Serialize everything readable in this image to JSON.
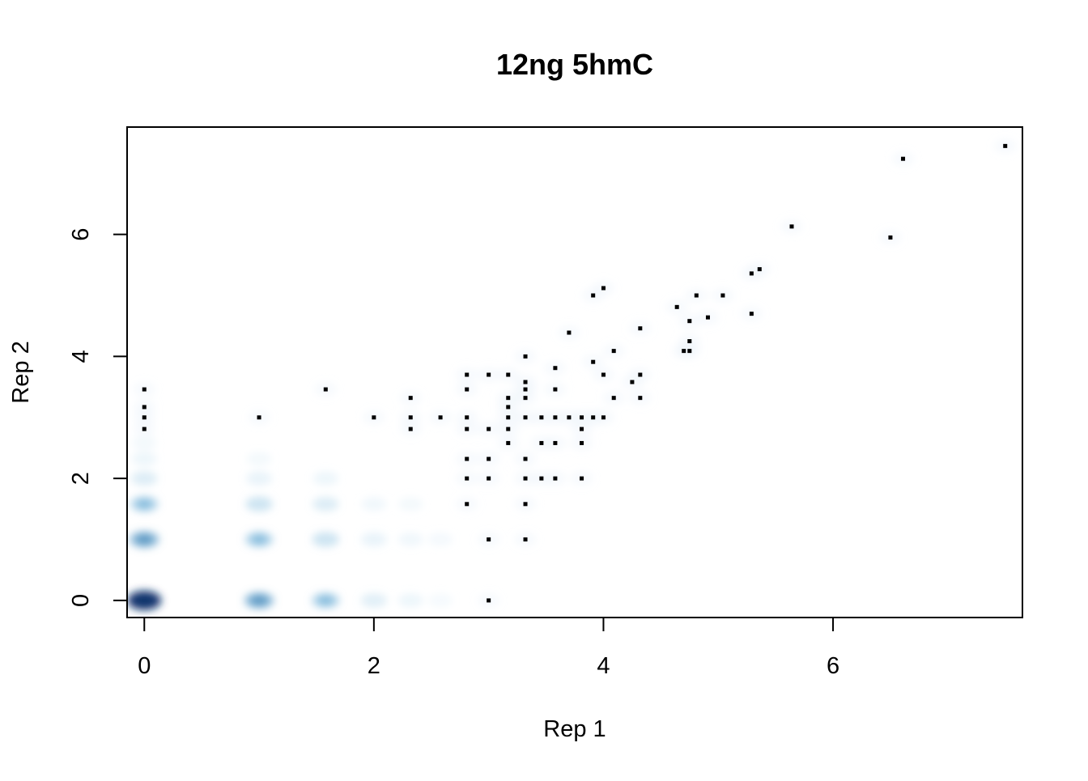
{
  "chart_data": {
    "type": "scatter",
    "subtype": "smoothScatter density",
    "title": "12ng 5hmC",
    "xlabel": "Rep 1",
    "ylabel": "Rep 2",
    "xlim": [
      -0.15,
      7.65
    ],
    "ylim": [
      -0.28,
      7.76
    ],
    "x_ticks": [
      0,
      2,
      4,
      6
    ],
    "y_ticks": [
      0,
      2,
      4,
      6
    ],
    "x_tick_labels": [
      "0",
      "2",
      "4",
      "6"
    ],
    "y_tick_labels": [
      "0",
      "2",
      "4",
      "6"
    ],
    "grid": false,
    "legend": "none",
    "colors": {
      "density_low": "#ffffff",
      "density_high": "#08306b",
      "point": "#000000",
      "frame": "#000000"
    },
    "density_clusters": [
      {
        "x": 0,
        "y": 0,
        "weight": 1.0
      },
      {
        "x": 0,
        "y": 1,
        "weight": 0.55
      },
      {
        "x": 0,
        "y": 1.58,
        "weight": 0.4
      },
      {
        "x": 0,
        "y": 2,
        "weight": 0.22
      },
      {
        "x": 0,
        "y": 2.32,
        "weight": 0.12
      },
      {
        "x": 0,
        "y": 2.58,
        "weight": 0.08
      },
      {
        "x": 1,
        "y": 0,
        "weight": 0.55
      },
      {
        "x": 1,
        "y": 1,
        "weight": 0.4
      },
      {
        "x": 1,
        "y": 1.58,
        "weight": 0.3
      },
      {
        "x": 1,
        "y": 2,
        "weight": 0.15
      },
      {
        "x": 1,
        "y": 2.32,
        "weight": 0.08
      },
      {
        "x": 1.58,
        "y": 0,
        "weight": 0.4
      },
      {
        "x": 1.58,
        "y": 1,
        "weight": 0.3
      },
      {
        "x": 1.58,
        "y": 1.58,
        "weight": 0.22
      },
      {
        "x": 1.58,
        "y": 2,
        "weight": 0.12
      },
      {
        "x": 2,
        "y": 0,
        "weight": 0.2
      },
      {
        "x": 2,
        "y": 1,
        "weight": 0.15
      },
      {
        "x": 2,
        "y": 1.58,
        "weight": 0.1
      },
      {
        "x": 2.32,
        "y": 0,
        "weight": 0.12
      },
      {
        "x": 2.32,
        "y": 1,
        "weight": 0.1
      },
      {
        "x": 2.32,
        "y": 1.58,
        "weight": 0.08
      },
      {
        "x": 2.58,
        "y": 1,
        "weight": 0.07
      },
      {
        "x": 2.58,
        "y": 0,
        "weight": 0.06
      }
    ],
    "points": [
      {
        "x": 0,
        "y": 3.46
      },
      {
        "x": 0,
        "y": 3.17
      },
      {
        "x": 0,
        "y": 3.0
      },
      {
        "x": 0,
        "y": 2.81
      },
      {
        "x": 1,
        "y": 3.0
      },
      {
        "x": 1.58,
        "y": 3.46
      },
      {
        "x": 2,
        "y": 3.0
      },
      {
        "x": 2.32,
        "y": 3.32
      },
      {
        "x": 2.32,
        "y": 3.0
      },
      {
        "x": 2.32,
        "y": 2.81
      },
      {
        "x": 2.58,
        "y": 3.0
      },
      {
        "x": 2.81,
        "y": 3.7
      },
      {
        "x": 2.81,
        "y": 3.46
      },
      {
        "x": 2.81,
        "y": 3.0
      },
      {
        "x": 2.81,
        "y": 2.81
      },
      {
        "x": 2.81,
        "y": 2.32
      },
      {
        "x": 2.81,
        "y": 2.0
      },
      {
        "x": 2.81,
        "y": 1.58
      },
      {
        "x": 3.0,
        "y": 3.7
      },
      {
        "x": 3.0,
        "y": 2.81
      },
      {
        "x": 3.0,
        "y": 2.32
      },
      {
        "x": 3.0,
        "y": 2.0
      },
      {
        "x": 3.0,
        "y": 1.0
      },
      {
        "x": 3.0,
        "y": 0.0
      },
      {
        "x": 3.17,
        "y": 3.7
      },
      {
        "x": 3.17,
        "y": 3.32
      },
      {
        "x": 3.17,
        "y": 3.17
      },
      {
        "x": 3.17,
        "y": 3.0
      },
      {
        "x": 3.17,
        "y": 2.81
      },
      {
        "x": 3.17,
        "y": 2.58
      },
      {
        "x": 3.32,
        "y": 4.0
      },
      {
        "x": 3.32,
        "y": 3.58
      },
      {
        "x": 3.32,
        "y": 3.46
      },
      {
        "x": 3.32,
        "y": 3.32
      },
      {
        "x": 3.32,
        "y": 3.0
      },
      {
        "x": 3.32,
        "y": 2.32
      },
      {
        "x": 3.32,
        "y": 2.0
      },
      {
        "x": 3.32,
        "y": 1.58
      },
      {
        "x": 3.32,
        "y": 1.0
      },
      {
        "x": 3.46,
        "y": 3.0
      },
      {
        "x": 3.46,
        "y": 2.58
      },
      {
        "x": 3.46,
        "y": 2.0
      },
      {
        "x": 3.58,
        "y": 3.81
      },
      {
        "x": 3.58,
        "y": 3.46
      },
      {
        "x": 3.58,
        "y": 3.0
      },
      {
        "x": 3.58,
        "y": 2.58
      },
      {
        "x": 3.58,
        "y": 2.0
      },
      {
        "x": 3.7,
        "y": 4.39
      },
      {
        "x": 3.7,
        "y": 3.0
      },
      {
        "x": 3.81,
        "y": 3.0
      },
      {
        "x": 3.81,
        "y": 2.81
      },
      {
        "x": 3.81,
        "y": 2.58
      },
      {
        "x": 3.81,
        "y": 2.0
      },
      {
        "x": 3.91,
        "y": 5.0
      },
      {
        "x": 3.91,
        "y": 3.91
      },
      {
        "x": 3.91,
        "y": 3.0
      },
      {
        "x": 4.0,
        "y": 5.12
      },
      {
        "x": 4.0,
        "y": 3.7
      },
      {
        "x": 4.0,
        "y": 3.0
      },
      {
        "x": 4.09,
        "y": 4.09
      },
      {
        "x": 4.09,
        "y": 3.32
      },
      {
        "x": 4.25,
        "y": 3.58
      },
      {
        "x": 4.32,
        "y": 4.46
      },
      {
        "x": 4.32,
        "y": 3.7
      },
      {
        "x": 4.32,
        "y": 3.32
      },
      {
        "x": 4.64,
        "y": 4.81
      },
      {
        "x": 4.7,
        "y": 4.09
      },
      {
        "x": 4.75,
        "y": 4.58
      },
      {
        "x": 4.75,
        "y": 4.25
      },
      {
        "x": 4.75,
        "y": 4.09
      },
      {
        "x": 4.81,
        "y": 5.0
      },
      {
        "x": 4.91,
        "y": 4.64
      },
      {
        "x": 5.04,
        "y": 5.0
      },
      {
        "x": 5.29,
        "y": 5.36
      },
      {
        "x": 5.29,
        "y": 4.7
      },
      {
        "x": 5.36,
        "y": 5.43
      },
      {
        "x": 5.64,
        "y": 6.13
      },
      {
        "x": 6.5,
        "y": 5.95
      },
      {
        "x": 6.61,
        "y": 7.24
      },
      {
        "x": 7.5,
        "y": 7.45
      }
    ]
  }
}
